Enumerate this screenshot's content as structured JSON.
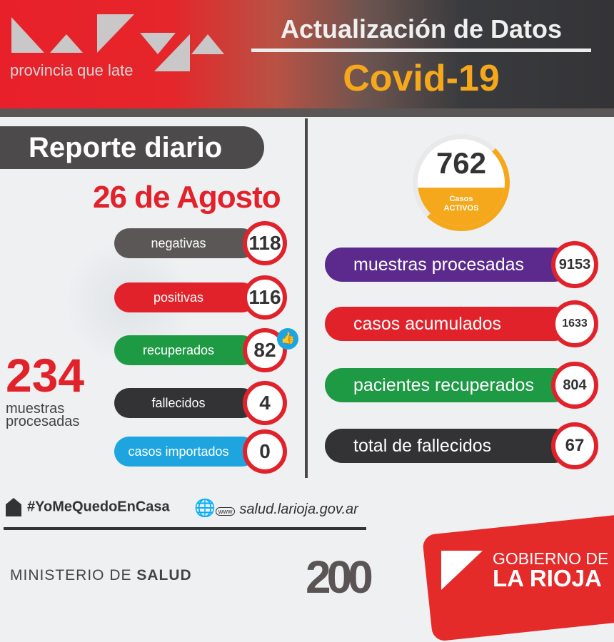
{
  "header": {
    "logo_text": "La Rioja",
    "logo_subtitle": "provincia que late",
    "title": "Actualización de Datos",
    "subtitle": "Covid-19"
  },
  "report": {
    "title": "Reporte diario",
    "date": "26 de Agosto",
    "items": [
      {
        "label": "negativas",
        "value": "118",
        "color": "#5b5757"
      },
      {
        "label": "positivas",
        "value": "116",
        "color": "#e2222a"
      },
      {
        "label": "recuperados",
        "value": "82",
        "color": "#1e9a45"
      },
      {
        "label": "fallecidos",
        "value": "4",
        "color": "#333336"
      },
      {
        "label": "casos importados",
        "value": "0",
        "color": "#1ea5e0"
      }
    ],
    "muestras_value": "234",
    "muestras_label": "muestras procesadas"
  },
  "totals": {
    "activos_value": "762",
    "activos_label1": "Casos",
    "activos_label2": "ACTIVOS",
    "items": [
      {
        "label": "muestras procesadas",
        "value": "9153",
        "color": "#5b2a8c"
      },
      {
        "label": "casos acumulados",
        "value": "1633",
        "color": "#e2222a"
      },
      {
        "label": "pacientes recuperados",
        "value": "804",
        "color": "#1e9a45"
      },
      {
        "label": "total de fallecidos",
        "value": "67",
        "color": "#333336"
      }
    ]
  },
  "footer": {
    "hashtag": "#YoMeQuedoEnCasa",
    "website": "salud.larioja.gov.ar",
    "www_label": "www",
    "ministerio_pre": "MINISTERIO DE ",
    "ministerio_bold": "SALUD",
    "bicentenario": "200",
    "gob_line1": "GOBIERNO DE",
    "gob_line2": "LA RIOJA"
  }
}
